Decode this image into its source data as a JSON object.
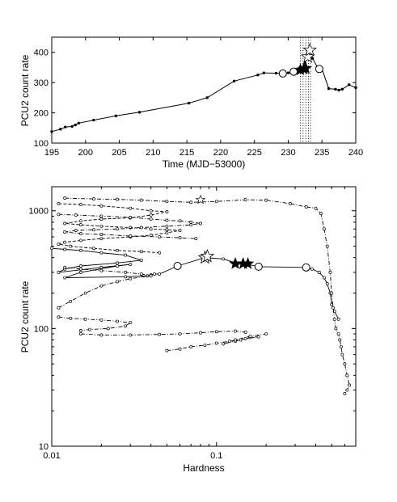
{
  "chart_data": [
    {
      "type": "line",
      "xlabel": "Time (MJD−53000)",
      "ylabel": "PCU2 count rate",
      "xlim": [
        195,
        240
      ],
      "ylim": [
        100,
        450
      ],
      "xticks": [
        195,
        200,
        205,
        210,
        215,
        220,
        225,
        230,
        235,
        240
      ],
      "yticks": [
        100,
        200,
        300,
        400
      ],
      "vlines": [
        231.8,
        232.2,
        232.6,
        233.0,
        233.3
      ],
      "series": [
        {
          "marker": "dot",
          "x": [
            195,
            196.3,
            197.0,
            198.0,
            198.5,
            199.0,
            201.2,
            204.5,
            208.0,
            215.3,
            218.0,
            222.0,
            225.5,
            226.4,
            228.2,
            229.2,
            230.0,
            231.0,
            231.6,
            232.0,
            232.5,
            232.9,
            233.2,
            233.6,
            234.3,
            235.0,
            236.0,
            237.0,
            237.5,
            238.0,
            239.0,
            240.0
          ],
          "y": [
            138,
            146,
            153,
            155,
            160,
            166,
            176,
            190,
            202,
            232,
            250,
            305,
            325,
            332,
            331,
            330,
            332,
            336,
            342,
            350,
            365,
            390,
            407,
            380,
            352,
            345,
            280,
            278,
            275,
            278,
            293,
            283
          ]
        },
        {
          "marker": "open-circle",
          "x": [
            229.2,
            230.8,
            234.6
          ],
          "y": [
            330,
            336,
            345
          ]
        },
        {
          "marker": "filled-star",
          "x": [
            231.8,
            232.3,
            232.6
          ],
          "y": [
            342,
            345,
            347
          ]
        },
        {
          "marker": "open-star",
          "x": [
            232.9,
            233.2
          ],
          "y": [
            385,
            407
          ]
        }
      ]
    },
    {
      "type": "line",
      "xlabel": "Hardness",
      "ylabel": "PCU2 count rate",
      "xscale": "log",
      "yscale": "log",
      "xlim": [
        0.01,
        0.7
      ],
      "ylim": [
        10,
        1600
      ],
      "xticks": [
        0.01,
        0.1
      ],
      "xtick_labels": [
        "0.01",
        "0.1"
      ],
      "yticks": [
        10,
        100,
        1000
      ],
      "ytick_labels": [
        "10",
        "100",
        "1000"
      ],
      "series": [
        {
          "style": "solid",
          "x": [
            0.01,
            0.012,
            0.015,
            0.02,
            0.028,
            0.035,
            0.025,
            0.015,
            0.012,
            0.011,
            0.02,
            0.03,
            0.025,
            0.015,
            0.012,
            0.028,
            0.038,
            0.04,
            0.042,
            0.045,
            0.058,
            0.085,
            0.11,
            0.135,
            0.145,
            0.155,
            0.18,
            0.35,
            0.38,
            0.42,
            0.45,
            0.47,
            0.49,
            0.5,
            0.52,
            0.55
          ],
          "y": [
            480,
            470,
            460,
            440,
            420,
            380,
            360,
            340,
            320,
            300,
            330,
            350,
            340,
            300,
            270,
            275,
            280,
            285,
            290,
            290,
            340,
            400,
            390,
            355,
            355,
            350,
            335,
            330,
            320,
            300,
            270,
            240,
            200,
            160,
            140,
            120
          ]
        },
        {
          "style": "dash-dot",
          "x": [
            0.012,
            0.018,
            0.025,
            0.035,
            0.05,
            0.07,
            0.1,
            0.15,
            0.2,
            0.28,
            0.35,
            0.4,
            0.43,
            0.45,
            0.47,
            0.49,
            0.5,
            0.51,
            0.52,
            0.53,
            0.55,
            0.56,
            0.57,
            0.58,
            0.6,
            0.62,
            0.64,
            0.62,
            0.6
          ],
          "y": [
            1280,
            1260,
            1250,
            1230,
            1200,
            1180,
            1200,
            1240,
            1230,
            1150,
            1080,
            1050,
            950,
            700,
            500,
            300,
            200,
            150,
            120,
            100,
            90,
            80,
            70,
            60,
            50,
            40,
            33,
            30,
            28
          ]
        },
        {
          "style": "dashed",
          "x": [
            0.011,
            0.015,
            0.02,
            0.03,
            0.04,
            0.05,
            0.04,
            0.03,
            0.02,
            0.015,
            0.012,
            0.015,
            0.02,
            0.03,
            0.04,
            0.05,
            0.06,
            0.05,
            0.04,
            0.03,
            0.02,
            0.015,
            0.012,
            0.011,
            0.013,
            0.018,
            0.025,
            0.035,
            0.045
          ],
          "y": [
            1150,
            1130,
            1100,
            1050,
            1000,
            980,
            920,
            870,
            850,
            820,
            780,
            760,
            740,
            720,
            700,
            690,
            680,
            650,
            620,
            600,
            580,
            560,
            540,
            520,
            500,
            480,
            460,
            450,
            440
          ]
        },
        {
          "style": "dash-dot",
          "x": [
            0.011,
            0.014,
            0.02,
            0.03,
            0.04,
            0.05,
            0.06,
            0.07,
            0.08,
            0.07,
            0.05,
            0.035,
            0.025,
            0.018,
            0.014,
            0.012,
            0.015,
            0.02,
            0.03,
            0.045,
            0.06,
            0.075
          ],
          "y": [
            930,
            920,
            900,
            880,
            850,
            830,
            820,
            800,
            780,
            760,
            740,
            720,
            700,
            690,
            680,
            660,
            640,
            630,
            610,
            600,
            590,
            580
          ]
        },
        {
          "style": "dash-dot",
          "x": [
            0.011,
            0.013,
            0.016,
            0.02,
            0.025,
            0.03,
            0.04,
            0.035,
            0.028,
            0.02,
            0.015,
            0.012
          ],
          "y": [
            150,
            170,
            200,
            230,
            250,
            265,
            280,
            290,
            300,
            310,
            320,
            330
          ]
        },
        {
          "style": "dash-dot",
          "x": [
            0.011,
            0.013,
            0.016,
            0.02,
            0.025,
            0.03,
            0.028,
            0.022,
            0.017,
            0.015
          ],
          "y": [
            125,
            122,
            120,
            118,
            115,
            112,
            105,
            100,
            98,
            96
          ]
        },
        {
          "style": "dash-dot",
          "x": [
            0.015,
            0.02,
            0.03,
            0.045,
            0.06,
            0.08,
            0.1,
            0.13,
            0.15
          ],
          "y": [
            90,
            88,
            88,
            89,
            90,
            92,
            94,
            95,
            93
          ]
        },
        {
          "style": "dash-dot",
          "x": [
            0.05,
            0.06,
            0.07,
            0.085,
            0.1,
            0.12,
            0.14,
            0.16,
            0.18,
            0.15,
            0.13,
            0.11,
            0.13,
            0.16,
            0.2
          ],
          "y": [
            65,
            67,
            70,
            72,
            75,
            78,
            80,
            84,
            85,
            82,
            78,
            74,
            80,
            86,
            90
          ]
        },
        {
          "style": "open-circle",
          "x": [
            0.058,
            0.18,
            0.35
          ],
          "y": [
            340,
            335,
            330
          ]
        },
        {
          "style": "filled-star",
          "x": [
            0.13,
            0.145,
            0.155
          ],
          "y": [
            355,
            355,
            355
          ]
        },
        {
          "style": "open-star",
          "x": [
            0.085,
            0.088
          ],
          "y": [
            400,
            410
          ]
        },
        {
          "style": "open-star-small",
          "x": [
            0.08
          ],
          "y": [
            1240
          ]
        }
      ]
    }
  ]
}
